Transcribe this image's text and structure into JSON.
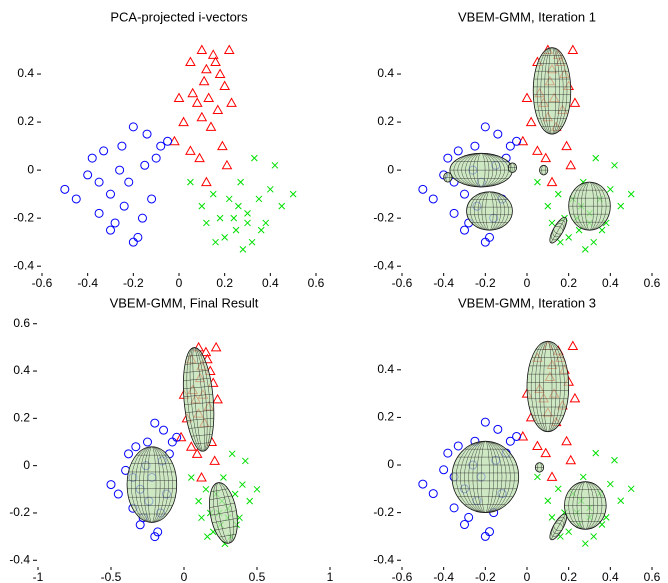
{
  "chart_data": [
    {
      "type": "scatter",
      "title": "PCA-projected i-vectors",
      "xlim": [
        -0.6,
        0.6
      ],
      "ylim": [
        -0.42,
        0.55
      ],
      "xticks": [
        -0.6,
        -0.4,
        -0.2,
        0,
        0.2,
        0.4,
        0.6
      ],
      "yticks": [
        -0.4,
        -0.2,
        0,
        0.2,
        0.4
      ],
      "series": [
        {
          "color": "#ff0000",
          "marker": "triangle",
          "x": [
            0.0,
            0.05,
            0.1,
            0.12,
            0.15,
            0.18,
            0.2,
            0.22,
            0.08,
            0.1,
            0.14,
            0.17,
            0.02,
            0.06,
            0.11,
            0.19,
            0.23,
            0.09,
            0.13,
            0.16,
            -0.02,
            0.21,
            0.12,
            0.05
          ],
          "values": [
            0.3,
            0.45,
            0.5,
            0.42,
            0.48,
            0.4,
            0.35,
            0.5,
            0.28,
            0.22,
            0.18,
            0.25,
            0.2,
            0.32,
            0.37,
            0.1,
            0.28,
            0.05,
            0.3,
            0.45,
            0.12,
            0.02,
            -0.05,
            0.08
          ]
        },
        {
          "color": "#0000ff",
          "marker": "circle",
          "x": [
            -0.5,
            -0.45,
            -0.4,
            -0.38,
            -0.35,
            -0.33,
            -0.3,
            -0.28,
            -0.26,
            -0.25,
            -0.22,
            -0.2,
            -0.18,
            -0.15,
            -0.12,
            -0.1,
            -0.08,
            -0.2,
            -0.3,
            -0.24,
            -0.16,
            -0.35,
            -0.05,
            -0.14
          ],
          "values": [
            -0.08,
            -0.12,
            -0.02,
            0.05,
            -0.18,
            0.08,
            -0.1,
            -0.22,
            0.0,
            0.1,
            -0.05,
            0.18,
            -0.28,
            0.02,
            -0.12,
            0.05,
            0.1,
            -0.3,
            -0.25,
            -0.15,
            -0.2,
            -0.05,
            0.12,
            0.15
          ]
        },
        {
          "color": "#00e000",
          "marker": "cross",
          "x": [
            0.05,
            0.1,
            0.12,
            0.15,
            0.18,
            0.2,
            0.22,
            0.25,
            0.27,
            0.3,
            0.32,
            0.35,
            0.38,
            0.4,
            0.45,
            0.5,
            0.28,
            0.24,
            0.33,
            0.16,
            0.36,
            0.42,
            0.26,
            0.3
          ],
          "values": [
            -0.05,
            -0.15,
            -0.22,
            -0.1,
            -0.2,
            -0.28,
            -0.12,
            -0.25,
            -0.05,
            -0.18,
            -0.3,
            -0.12,
            -0.22,
            -0.08,
            -0.15,
            -0.1,
            -0.33,
            -0.2,
            0.05,
            -0.3,
            -0.25,
            0.02,
            -0.15,
            -0.22
          ]
        }
      ],
      "ellipses": []
    },
    {
      "type": "scatter",
      "title": "VBEM-GMM, Iteration 1",
      "xlim": [
        -0.6,
        0.6
      ],
      "ylim": [
        -0.42,
        0.55
      ],
      "xticks": [
        -0.6,
        -0.4,
        -0.2,
        0,
        0.2,
        0.4,
        0.6
      ],
      "yticks": [
        -0.4,
        -0.2,
        0,
        0.2,
        0.4
      ],
      "series": [
        {
          "color": "#ff0000",
          "marker": "triangle",
          "x": [
            0.0,
            0.05,
            0.1,
            0.12,
            0.15,
            0.18,
            0.2,
            0.22,
            0.08,
            0.1,
            0.14,
            0.17,
            0.02,
            0.06,
            0.11,
            0.19,
            0.23,
            0.09,
            0.13,
            0.16,
            -0.02,
            0.21,
            0.12,
            0.05
          ],
          "values": [
            0.3,
            0.45,
            0.5,
            0.42,
            0.48,
            0.4,
            0.35,
            0.5,
            0.28,
            0.22,
            0.18,
            0.25,
            0.2,
            0.32,
            0.37,
            0.1,
            0.28,
            0.05,
            0.3,
            0.45,
            0.12,
            0.02,
            -0.05,
            0.08
          ]
        },
        {
          "color": "#0000ff",
          "marker": "circle",
          "x": [
            -0.5,
            -0.45,
            -0.4,
            -0.38,
            -0.35,
            -0.33,
            -0.3,
            -0.28,
            -0.26,
            -0.25,
            -0.22,
            -0.2,
            -0.18,
            -0.15,
            -0.12,
            -0.1,
            -0.08,
            -0.2,
            -0.3,
            -0.24,
            -0.16,
            -0.35,
            -0.05,
            -0.14
          ],
          "values": [
            -0.08,
            -0.12,
            -0.02,
            0.05,
            -0.18,
            0.08,
            -0.1,
            -0.22,
            0.0,
            0.1,
            -0.05,
            0.18,
            -0.28,
            0.02,
            -0.12,
            0.05,
            0.1,
            -0.3,
            -0.25,
            -0.15,
            -0.2,
            -0.05,
            0.12,
            0.15
          ]
        },
        {
          "color": "#00e000",
          "marker": "cross",
          "x": [
            0.05,
            0.1,
            0.12,
            0.15,
            0.18,
            0.2,
            0.22,
            0.25,
            0.27,
            0.3,
            0.32,
            0.35,
            0.38,
            0.4,
            0.45,
            0.5,
            0.28,
            0.24,
            0.33,
            0.16,
            0.36,
            0.42,
            0.26,
            0.3
          ],
          "values": [
            -0.05,
            -0.15,
            -0.22,
            -0.1,
            -0.2,
            -0.28,
            -0.12,
            -0.25,
            -0.05,
            -0.18,
            -0.3,
            -0.12,
            -0.22,
            -0.08,
            -0.15,
            -0.1,
            -0.33,
            -0.2,
            0.05,
            -0.3,
            -0.25,
            0.02,
            -0.15,
            -0.22
          ]
        }
      ],
      "ellipses": [
        {
          "cx": 0.12,
          "cy": 0.33,
          "rx": 0.09,
          "ry": 0.18,
          "angle": 0
        },
        {
          "cx": -0.22,
          "cy": 0.0,
          "rx": 0.15,
          "ry": 0.07,
          "angle": 0
        },
        {
          "cx": -0.18,
          "cy": -0.17,
          "rx": 0.11,
          "ry": 0.08,
          "angle": 0
        },
        {
          "cx": 0.3,
          "cy": -0.15,
          "rx": 0.1,
          "ry": 0.1,
          "angle": 0
        },
        {
          "cx": 0.15,
          "cy": -0.25,
          "rx": 0.07,
          "ry": 0.02,
          "angle": 60
        },
        {
          "cx": 0.08,
          "cy": 0.0,
          "rx": 0.02,
          "ry": 0.02,
          "angle": 0
        },
        {
          "cx": -0.07,
          "cy": 0.01,
          "rx": 0.02,
          "ry": 0.02,
          "angle": 0
        },
        {
          "cx": -0.38,
          "cy": -0.03,
          "rx": 0.02,
          "ry": 0.02,
          "angle": 0
        }
      ]
    },
    {
      "type": "scatter",
      "title": "VBEM-GMM, Final Result",
      "xlim": [
        -1,
        1
      ],
      "ylim": [
        -0.42,
        0.62
      ],
      "xticks": [
        -1,
        -0.5,
        0,
        0.5,
        1
      ],
      "yticks": [
        -0.4,
        -0.2,
        0,
        0.2,
        0.4,
        0.6
      ],
      "series": [
        {
          "color": "#ff0000",
          "marker": "triangle",
          "x": [
            0.0,
            0.05,
            0.1,
            0.12,
            0.15,
            0.18,
            0.2,
            0.22,
            0.08,
            0.1,
            0.14,
            0.17,
            0.02,
            0.06,
            0.11,
            0.19,
            0.23,
            0.09,
            0.13,
            0.16,
            -0.02,
            0.21,
            0.12,
            0.05
          ],
          "values": [
            0.3,
            0.45,
            0.5,
            0.42,
            0.48,
            0.4,
            0.35,
            0.5,
            0.28,
            0.22,
            0.18,
            0.25,
            0.2,
            0.32,
            0.37,
            0.1,
            0.28,
            0.05,
            0.3,
            0.45,
            0.12,
            0.02,
            -0.05,
            0.08
          ]
        },
        {
          "color": "#0000ff",
          "marker": "circle",
          "x": [
            -0.5,
            -0.45,
            -0.4,
            -0.38,
            -0.35,
            -0.33,
            -0.3,
            -0.28,
            -0.26,
            -0.25,
            -0.22,
            -0.2,
            -0.18,
            -0.15,
            -0.12,
            -0.1,
            -0.08,
            -0.2,
            -0.3,
            -0.24,
            -0.16,
            -0.35,
            -0.05,
            -0.14
          ],
          "values": [
            -0.08,
            -0.12,
            -0.02,
            0.05,
            -0.18,
            0.08,
            -0.1,
            -0.22,
            0.0,
            0.1,
            -0.05,
            0.18,
            -0.28,
            0.02,
            -0.12,
            0.05,
            0.1,
            -0.3,
            -0.25,
            -0.15,
            -0.2,
            -0.05,
            0.12,
            0.15
          ]
        },
        {
          "color": "#00e000",
          "marker": "cross",
          "x": [
            0.05,
            0.1,
            0.12,
            0.15,
            0.18,
            0.2,
            0.22,
            0.25,
            0.27,
            0.3,
            0.32,
            0.35,
            0.38,
            0.4,
            0.45,
            0.5,
            0.28,
            0.24,
            0.33,
            0.16,
            0.36,
            0.42,
            0.26,
            0.3
          ],
          "values": [
            -0.05,
            -0.15,
            -0.22,
            -0.1,
            -0.2,
            -0.28,
            -0.12,
            -0.25,
            -0.05,
            -0.18,
            -0.3,
            -0.12,
            -0.22,
            -0.08,
            -0.15,
            -0.1,
            -0.33,
            -0.2,
            0.05,
            -0.3,
            -0.25,
            0.02,
            -0.15,
            -0.22
          ]
        }
      ],
      "ellipses": [
        {
          "cx": 0.1,
          "cy": 0.28,
          "rx": 0.1,
          "ry": 0.22,
          "angle": 5
        },
        {
          "cx": -0.22,
          "cy": -0.08,
          "rx": 0.17,
          "ry": 0.16,
          "angle": 0
        },
        {
          "cx": 0.27,
          "cy": -0.2,
          "rx": 0.09,
          "ry": 0.13,
          "angle": 10
        }
      ]
    },
    {
      "type": "scatter",
      "title": "VBEM-GMM, Iteration 3",
      "xlim": [
        -0.6,
        0.6
      ],
      "ylim": [
        -0.42,
        0.5
      ],
      "xticks": [
        -0.6,
        -0.4,
        -0.2,
        0,
        0.2,
        0.4,
        0.6
      ],
      "yticks": [
        -0.4,
        -0.2,
        0,
        0.2,
        0.4
      ],
      "series": [
        {
          "color": "#ff0000",
          "marker": "triangle",
          "x": [
            0.0,
            0.05,
            0.1,
            0.12,
            0.15,
            0.18,
            0.2,
            0.22,
            0.08,
            0.1,
            0.14,
            0.17,
            0.02,
            0.06,
            0.11,
            0.19,
            0.23,
            0.09,
            0.13,
            0.16,
            -0.02,
            0.21,
            0.12,
            0.05
          ],
          "values": [
            0.3,
            0.45,
            0.5,
            0.42,
            0.48,
            0.4,
            0.35,
            0.5,
            0.28,
            0.22,
            0.18,
            0.25,
            0.2,
            0.32,
            0.37,
            0.1,
            0.28,
            0.05,
            0.3,
            0.45,
            0.12,
            0.02,
            -0.05,
            0.08
          ]
        },
        {
          "color": "#0000ff",
          "marker": "circle",
          "x": [
            -0.5,
            -0.45,
            -0.4,
            -0.38,
            -0.35,
            -0.33,
            -0.3,
            -0.28,
            -0.26,
            -0.25,
            -0.22,
            -0.2,
            -0.18,
            -0.15,
            -0.12,
            -0.1,
            -0.08,
            -0.2,
            -0.3,
            -0.24,
            -0.16,
            -0.35,
            -0.05,
            -0.14
          ],
          "values": [
            -0.08,
            -0.12,
            -0.02,
            0.05,
            -0.18,
            0.08,
            -0.1,
            -0.22,
            0.0,
            0.1,
            -0.05,
            0.18,
            -0.28,
            0.02,
            -0.12,
            0.05,
            0.1,
            -0.3,
            -0.25,
            -0.15,
            -0.2,
            -0.05,
            0.12,
            0.15
          ]
        },
        {
          "color": "#00e000",
          "marker": "cross",
          "x": [
            0.05,
            0.1,
            0.12,
            0.15,
            0.18,
            0.2,
            0.22,
            0.25,
            0.27,
            0.3,
            0.32,
            0.35,
            0.38,
            0.4,
            0.45,
            0.5,
            0.28,
            0.24,
            0.33,
            0.16,
            0.36,
            0.42,
            0.26,
            0.3
          ],
          "values": [
            -0.05,
            -0.15,
            -0.22,
            -0.1,
            -0.2,
            -0.28,
            -0.12,
            -0.25,
            -0.05,
            -0.18,
            -0.3,
            -0.12,
            -0.22,
            -0.08,
            -0.15,
            -0.1,
            -0.33,
            -0.2,
            0.05,
            -0.3,
            -0.25,
            0.02,
            -0.15,
            -0.22
          ]
        }
      ],
      "ellipses": [
        {
          "cx": 0.1,
          "cy": 0.33,
          "rx": 0.1,
          "ry": 0.19,
          "angle": 0
        },
        {
          "cx": -0.2,
          "cy": -0.05,
          "rx": 0.16,
          "ry": 0.15,
          "angle": 0
        },
        {
          "cx": 0.28,
          "cy": -0.17,
          "rx": 0.1,
          "ry": 0.1,
          "angle": 0
        },
        {
          "cx": 0.15,
          "cy": -0.26,
          "rx": 0.07,
          "ry": 0.02,
          "angle": 60
        },
        {
          "cx": 0.06,
          "cy": -0.01,
          "rx": 0.02,
          "ry": 0.02,
          "angle": 0
        }
      ]
    }
  ]
}
